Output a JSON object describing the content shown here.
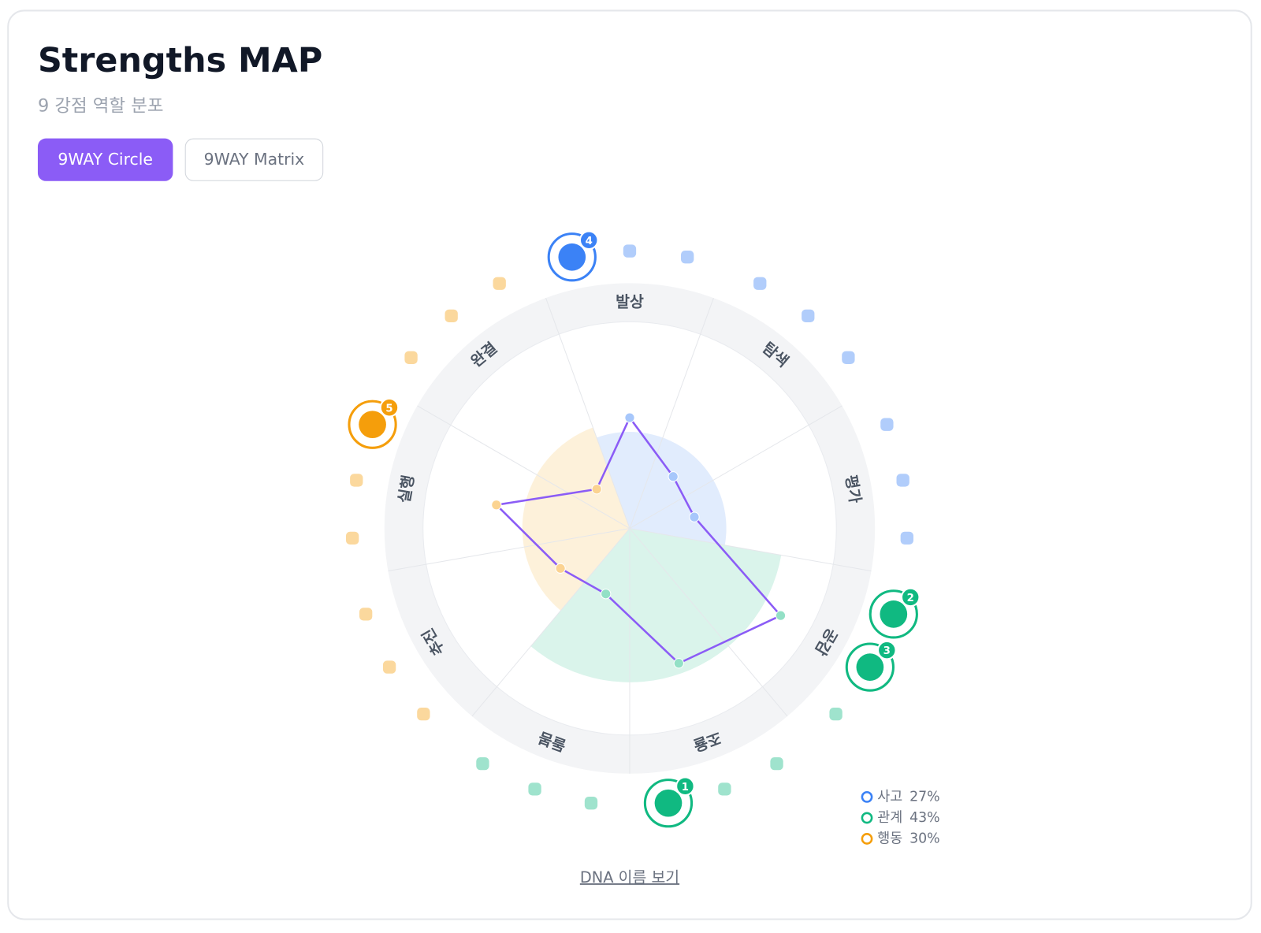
{
  "header": {
    "title": "Strengths MAP",
    "subtitle": "9 강점 역할 분포"
  },
  "tabs": [
    "9WAY Circle",
    "9WAY Matrix"
  ],
  "chart_data": {
    "type": "radar",
    "categories": [
      "발상",
      "탐색",
      "평가",
      "공감",
      "조율",
      "돌봄",
      "추진",
      "실행",
      "완결"
    ],
    "values": [
      54,
      33,
      32,
      85,
      70,
      34,
      39,
      66,
      25
    ],
    "rlim": [
      0,
      100
    ],
    "color": "#8b5cf6",
    "groups": [
      {
        "name": "사고",
        "value": 27,
        "value_label": "27%",
        "color": "#3b82f6"
      },
      {
        "name": "관계",
        "value": 43,
        "value_label": "43%",
        "color": "#10b981"
      },
      {
        "name": "행동",
        "value": 30,
        "value_label": "30%",
        "color": "#f59e0b"
      }
    ],
    "badges": [
      1,
      2,
      3,
      4,
      5
    ]
  },
  "link": "DNA 이름 보기"
}
